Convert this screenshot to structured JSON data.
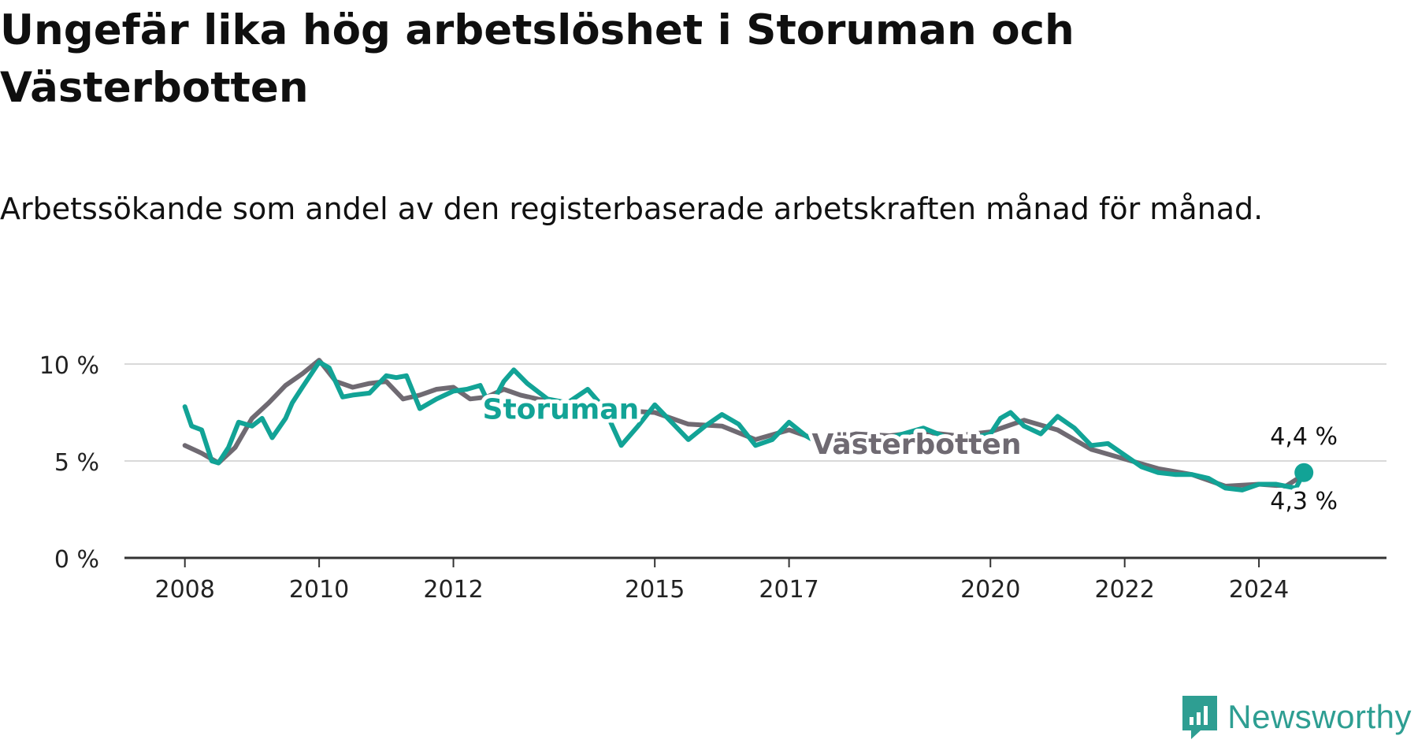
{
  "title": "Ungefär lika hög arbetslöshet i Storuman och Västerbotten",
  "subtitle": "Arbetssökande som andel av den registerbaserade arbetskraften månad för månad.",
  "brand": {
    "name": "Newsworthy",
    "icon": "newsworthy-logo-icon",
    "color": "#2e9e92"
  },
  "chart_data": {
    "type": "line",
    "x_unit": "year",
    "ylim": [
      0,
      10
    ],
    "y_ticks": [
      0,
      5,
      10
    ],
    "y_tick_labels": [
      "0 %",
      "5 %",
      "10 %"
    ],
    "x_ticks": [
      2008,
      2010,
      2012,
      2015,
      2017,
      2020,
      2022,
      2024
    ],
    "x_tick_labels": [
      "2008",
      "2010",
      "2012",
      "2015",
      "2017",
      "2020",
      "2022",
      "2024"
    ],
    "xlim": [
      2007.1,
      2025.9
    ],
    "grid": true,
    "series": [
      {
        "name": "Västerbotten",
        "color": "#6f6a72",
        "x": [
          2008.0,
          2008.25,
          2008.5,
          2008.75,
          2009.0,
          2009.25,
          2009.5,
          2009.75,
          2010.0,
          2010.25,
          2010.5,
          2010.75,
          2011.0,
          2011.25,
          2011.5,
          2011.75,
          2012.0,
          2012.25,
          2012.5,
          2012.75,
          2013.0,
          2013.5,
          2014.0,
          2014.5,
          2015.0,
          2015.5,
          2016.0,
          2016.5,
          2017.0,
          2017.5,
          2018.0,
          2018.5,
          2019.0,
          2019.5,
          2020.0,
          2020.5,
          2021.0,
          2021.5,
          2022.0,
          2022.5,
          2023.0,
          2023.5,
          2024.0,
          2024.4,
          2024.67
        ],
        "values": [
          5.8,
          5.4,
          4.9,
          5.7,
          7.2,
          8.0,
          8.9,
          9.5,
          10.2,
          9.1,
          8.8,
          9.0,
          9.1,
          8.2,
          8.4,
          8.7,
          8.8,
          8.2,
          8.3,
          8.7,
          8.4,
          8.0,
          7.9,
          7.6,
          7.5,
          6.9,
          6.8,
          6.1,
          6.6,
          6.0,
          6.4,
          6.3,
          6.5,
          6.3,
          6.5,
          7.1,
          6.6,
          5.6,
          5.1,
          4.6,
          4.3,
          3.7,
          3.8,
          3.7,
          4.3
        ]
      },
      {
        "name": "Storuman",
        "color": "#12a396",
        "x": [
          2008.0,
          2008.1,
          2008.25,
          2008.4,
          2008.5,
          2008.65,
          2008.8,
          2009.0,
          2009.15,
          2009.3,
          2009.5,
          2009.6,
          2009.75,
          2010.0,
          2010.15,
          2010.35,
          2010.5,
          2010.75,
          2011.0,
          2011.15,
          2011.3,
          2011.5,
          2011.75,
          2012.0,
          2012.2,
          2012.4,
          2012.55,
          2012.75,
          2012.9,
          2013.1,
          2013.4,
          2013.7,
          2014.0,
          2014.25,
          2014.5,
          2014.75,
          2015.0,
          2015.25,
          2015.5,
          2015.75,
          2016.0,
          2016.25,
          2016.5,
          2016.75,
          2017.0,
          2017.25,
          2017.5,
          2017.75,
          2018.0,
          2018.5,
          2019.0,
          2019.5,
          2020.0,
          2020.15,
          2020.3,
          2020.5,
          2020.75,
          2021.0,
          2021.25,
          2021.5,
          2021.75,
          2022.0,
          2022.25,
          2022.5,
          2022.75,
          2023.0,
          2023.25,
          2023.5,
          2023.75,
          2024.0,
          2024.25,
          2024.4,
          2024.55,
          2024.67
        ],
        "values": [
          7.8,
          6.8,
          6.6,
          5.0,
          4.9,
          5.7,
          7.0,
          6.8,
          7.2,
          6.2,
          7.2,
          8.0,
          8.8,
          10.1,
          9.8,
          8.3,
          8.4,
          8.5,
          9.4,
          9.3,
          9.4,
          7.7,
          8.2,
          8.6,
          8.7,
          8.9,
          7.8,
          9.1,
          9.7,
          9.0,
          8.2,
          8.0,
          8.7,
          7.7,
          5.8,
          6.8,
          7.9,
          7.0,
          6.1,
          6.8,
          7.4,
          6.9,
          5.8,
          6.1,
          7.0,
          6.3,
          5.8,
          5.5,
          5.6,
          6.2,
          6.7,
          6.0,
          6.4,
          7.2,
          7.5,
          6.8,
          6.4,
          7.3,
          6.7,
          5.8,
          5.9,
          5.3,
          4.7,
          4.4,
          4.3,
          4.3,
          4.1,
          3.6,
          3.5,
          3.8,
          3.8,
          3.7,
          3.6,
          4.4
        ]
      }
    ],
    "annotations": [
      {
        "text": "Storuman",
        "series": "Storuman",
        "x": 2013.6,
        "y": 7.5
      },
      {
        "text": "Västerbotten",
        "series": "Västerbotten",
        "x": 2018.9,
        "y": 5.7
      },
      {
        "text": "4,4 %",
        "series": "Storuman",
        "x": 2024.67,
        "y": 4.4
      },
      {
        "text": "4,3 %",
        "series": "Västerbotten",
        "x": 2024.67,
        "y": 4.3
      }
    ]
  }
}
